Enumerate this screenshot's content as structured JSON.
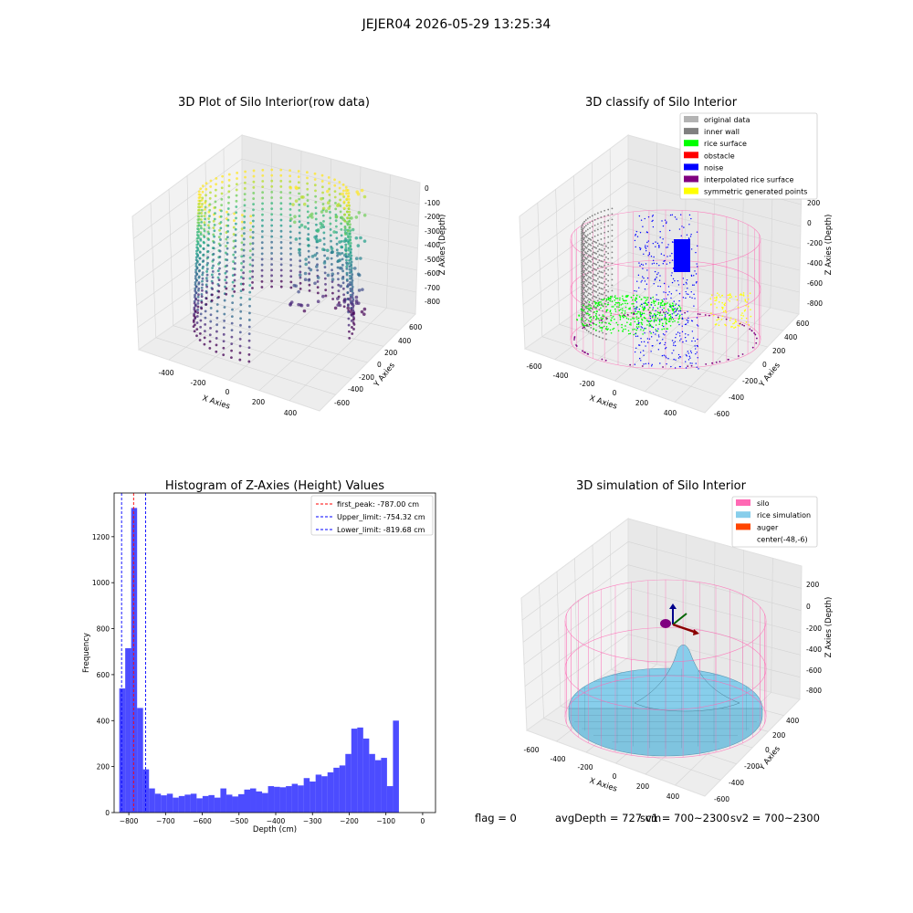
{
  "figure": {
    "suptitle": "JEJER04 2026-05-29 13:25:34"
  },
  "plots": {
    "raw": {
      "title": "3D Plot of Silo Interior(row data)",
      "xlabel": "X Axies",
      "ylabel": "Y Axies",
      "zlabel": "Z Axies (Depth)",
      "xticks": [
        "-400",
        "-200",
        "0",
        "200",
        "400"
      ],
      "yticks": [
        "600",
        "400",
        "200",
        "0",
        "-200",
        "-400",
        "-600"
      ],
      "zticks": [
        "0",
        "-100",
        "-200",
        "-300",
        "-400",
        "-500",
        "-600",
        "-700",
        "-800"
      ]
    },
    "classify": {
      "title": "3D classify of Silo Interior",
      "xlabel": "X Axies",
      "ylabel": "Y Axies",
      "zlabel": "Z Axies (Depth)",
      "xticks": [
        "-600",
        "-400",
        "-200",
        "0",
        "200",
        "400"
      ],
      "yticks": [
        "600",
        "400",
        "200",
        "0",
        "-200",
        "-400",
        "-600"
      ],
      "zticks": [
        "200",
        "0",
        "-200",
        "-400",
        "-600",
        "-800"
      ],
      "legend": [
        {
          "label": "original data",
          "color": "#b3b3b3"
        },
        {
          "label": "inner wall",
          "color": "#808080"
        },
        {
          "label": "rice surface",
          "color": "#00ff00"
        },
        {
          "label": "obstacle",
          "color": "#ff0000"
        },
        {
          "label": "noise",
          "color": "#0000ff"
        },
        {
          "label": "interpolated rice surface",
          "color": "#800080"
        },
        {
          "label": "symmetric generated points",
          "color": "#ffff00"
        }
      ]
    },
    "simulation": {
      "title": "3D simulation of Silo Interior",
      "xlabel": "X Axies",
      "ylabel": "Y Axies",
      "zlabel": "Z Axies (Depth)",
      "xticks": [
        "-600",
        "-400",
        "-200",
        "0",
        "200",
        "400"
      ],
      "yticks": [
        "400",
        "200",
        "0",
        "-200",
        "-400",
        "-600"
      ],
      "zticks": [
        "200",
        "0",
        "-200",
        "-400",
        "-600",
        "-800"
      ],
      "legend": [
        {
          "label": "silo",
          "color": "#ff69b4"
        },
        {
          "label": "rice simulation",
          "color": "#87ceeb"
        },
        {
          "label": "auger",
          "color": "#ff4500"
        },
        {
          "label": "center(-48,-6)",
          "color": ""
        }
      ]
    }
  },
  "chart_data": {
    "type": "bar",
    "title": "Histogram of Z-Axies (Height) Values",
    "xlabel": "Depth (cm)",
    "ylabel": "Frequency",
    "xlim": [
      -840,
      35
    ],
    "ylim": [
      0,
      1390
    ],
    "xticks": [
      -800,
      -700,
      -600,
      -500,
      -400,
      -300,
      -200,
      -100,
      0
    ],
    "yticks": [
      0,
      200,
      400,
      600,
      800,
      1000,
      1200
    ],
    "bin_start": -826,
    "bin_width": 16.2,
    "color": "#0000ff",
    "values": [
      540,
      715,
      1325,
      455,
      188,
      105,
      82,
      75,
      82,
      65,
      72,
      78,
      82,
      62,
      72,
      76,
      65,
      105,
      78,
      70,
      80,
      100,
      105,
      92,
      85,
      115,
      112,
      110,
      115,
      125,
      118,
      150,
      135,
      165,
      158,
      175,
      195,
      205,
      255,
      365,
      370,
      322,
      255,
      228,
      238,
      115,
      400
    ],
    "vlines": [
      {
        "label": "first_peak: -787.00 cm",
        "x": -787.0,
        "color": "#ff0000"
      },
      {
        "label": "Upper_limit: -754.32 cm",
        "x": -754.32,
        "color": "#0000ff"
      },
      {
        "label": "Lower_limit: -819.68 cm",
        "x": -819.68,
        "color": "#0000ff"
      }
    ],
    "legend_position": "top-right"
  },
  "footer": {
    "flag": "flag = 0",
    "avg": "avgDepth = 727 cm",
    "sv1": "sv1 = 700~2300",
    "sv2": "sv2 = 700~2300"
  }
}
